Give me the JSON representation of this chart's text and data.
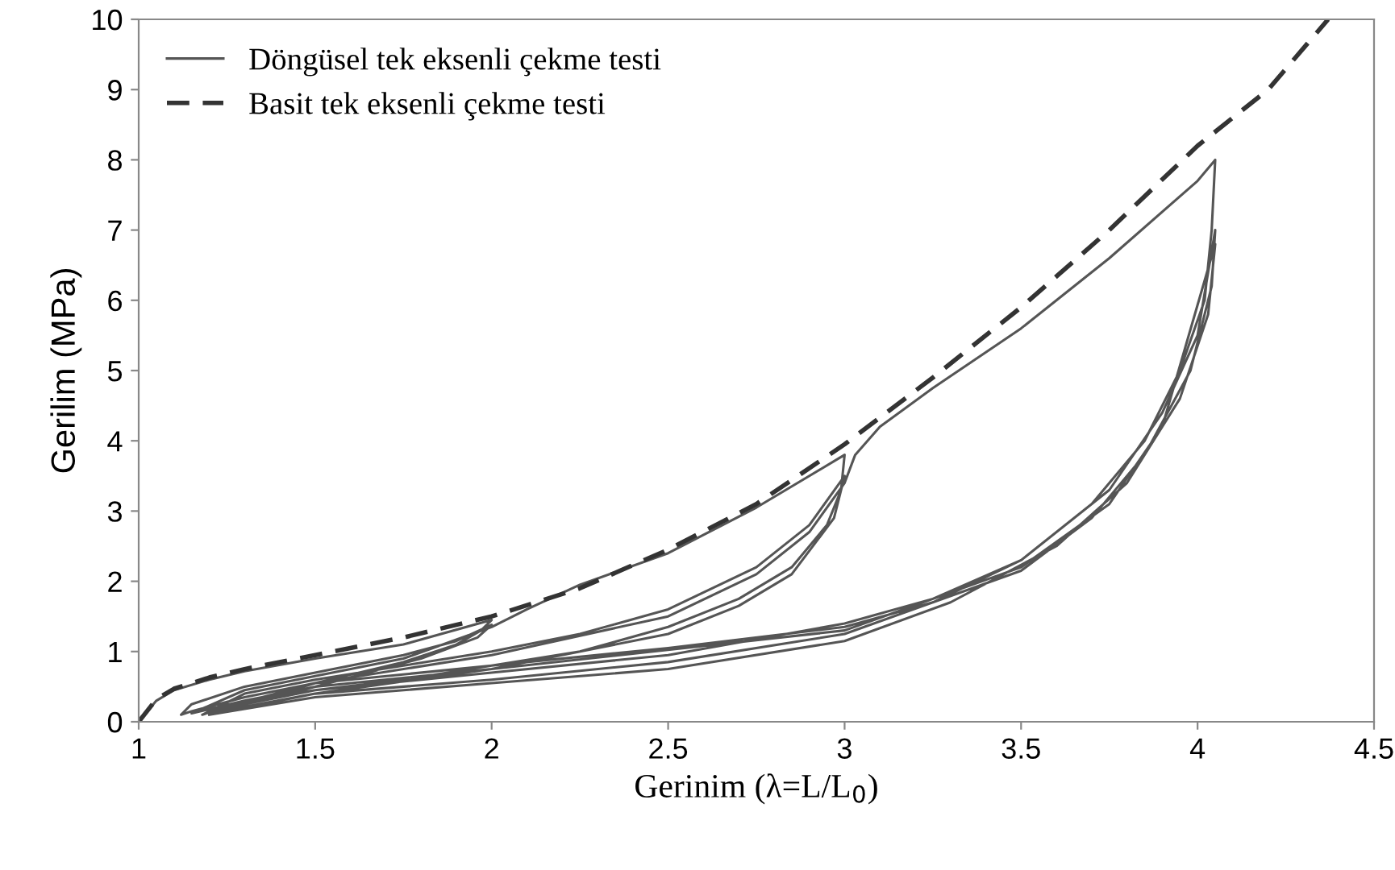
{
  "chart_data": {
    "type": "line",
    "xlabel": "Gerinim (λ=L/L$_{0}$)",
    "ylabel": "Gerilim (MPa)",
    "xlim": [
      1,
      4.5
    ],
    "xticks": [
      1,
      1.5,
      2,
      2.5,
      3,
      3.5,
      4,
      4.5
    ],
    "ylim": [
      0,
      10
    ],
    "yticks": [
      0,
      1,
      2,
      3,
      4,
      5,
      6,
      7,
      8,
      9,
      10
    ],
    "grid": false,
    "legend": "top left",
    "series": [
      {
        "name": "Döngüsel tek eksenli çekme testi",
        "color": "#555555",
        "line_style": "solid",
        "x": [
          1.0,
          1.05,
          1.1,
          1.2,
          1.3,
          1.5,
          1.75,
          2.0,
          1.97,
          1.9,
          1.75,
          1.5,
          1.3,
          1.15,
          1.12,
          1.15,
          1.3,
          1.5,
          1.75,
          1.9,
          2.0,
          1.96,
          1.8,
          1.5,
          1.3,
          1.15,
          1.3,
          1.5,
          1.75,
          2.0,
          2.1,
          2.25,
          2.5,
          2.75,
          3.0,
          2.99,
          2.95,
          2.85,
          2.7,
          2.5,
          2.25,
          2.0,
          1.75,
          1.5,
          1.3,
          1.18,
          1.3,
          1.5,
          1.75,
          2.0,
          2.25,
          2.5,
          2.75,
          2.9,
          3.0,
          2.97,
          2.85,
          2.7,
          2.5,
          2.0,
          1.5,
          1.2,
          1.5,
          2.0,
          2.5,
          2.75,
          2.9,
          3.0,
          3.03,
          3.1,
          3.25,
          3.5,
          3.75,
          4.0,
          4.05,
          4.04,
          4.02,
          3.95,
          3.85,
          3.7,
          3.5,
          3.25,
          3.0,
          2.5,
          2.0,
          1.5,
          1.2,
          1.5,
          2.0,
          2.5,
          3.0,
          3.25,
          3.5,
          3.75,
          3.9,
          4.0,
          4.05,
          4.04,
          3.98,
          3.85,
          3.7,
          3.5,
          3.0,
          2.5,
          2.0,
          1.5,
          1.2,
          1.5,
          2.0,
          3.0,
          3.5,
          3.75,
          3.9,
          4.05,
          4.03,
          3.95,
          3.8,
          3.6,
          3.3,
          3.0,
          2.5,
          2.0,
          1.5,
          1.2
        ],
        "values": [
          0,
          0.3,
          0.45,
          0.6,
          0.72,
          0.9,
          1.1,
          1.45,
          1.3,
          1.1,
          0.85,
          0.55,
          0.35,
          0.15,
          0.1,
          0.25,
          0.5,
          0.7,
          0.95,
          1.15,
          1.38,
          1.2,
          0.9,
          0.5,
          0.3,
          0.12,
          0.45,
          0.65,
          0.9,
          1.35,
          1.6,
          1.95,
          2.4,
          3.05,
          3.8,
          3.3,
          2.8,
          2.2,
          1.75,
          1.35,
          1.0,
          0.8,
          0.6,
          0.45,
          0.3,
          0.1,
          0.4,
          0.6,
          0.8,
          1.0,
          1.25,
          1.6,
          2.2,
          2.8,
          3.5,
          2.9,
          2.1,
          1.65,
          1.25,
          0.75,
          0.4,
          0.1,
          0.55,
          0.95,
          1.5,
          2.1,
          2.7,
          3.4,
          3.8,
          4.2,
          4.75,
          5.6,
          6.6,
          7.7,
          8.0,
          7.0,
          6.0,
          5.0,
          4.0,
          3.1,
          2.3,
          1.75,
          1.4,
          0.95,
          0.7,
          0.45,
          0.15,
          0.55,
          0.8,
          1.05,
          1.35,
          1.7,
          2.3,
          3.3,
          4.4,
          5.5,
          7.0,
          6.2,
          5.0,
          3.8,
          2.9,
          2.15,
          1.25,
          0.85,
          0.6,
          0.4,
          0.12,
          0.5,
          0.75,
          1.3,
          2.2,
          3.1,
          4.2,
          6.8,
          5.8,
          4.6,
          3.4,
          2.5,
          1.7,
          1.15,
          0.75,
          0.55,
          0.35,
          0.1
        ]
      },
      {
        "name": "Basit tek eksenli çekme testi",
        "color": "#333333",
        "line_style": "dashed",
        "x": [
          1.0,
          1.05,
          1.1,
          1.2,
          1.3,
          1.5,
          1.75,
          2.0,
          2.25,
          2.5,
          2.75,
          3.0,
          3.25,
          3.5,
          3.75,
          4.0,
          4.2,
          4.37
        ],
        "values": [
          0,
          0.32,
          0.47,
          0.63,
          0.75,
          0.95,
          1.2,
          1.5,
          1.9,
          2.45,
          3.1,
          3.95,
          4.9,
          5.9,
          7.0,
          8.2,
          9.0,
          10.0
        ]
      }
    ]
  }
}
